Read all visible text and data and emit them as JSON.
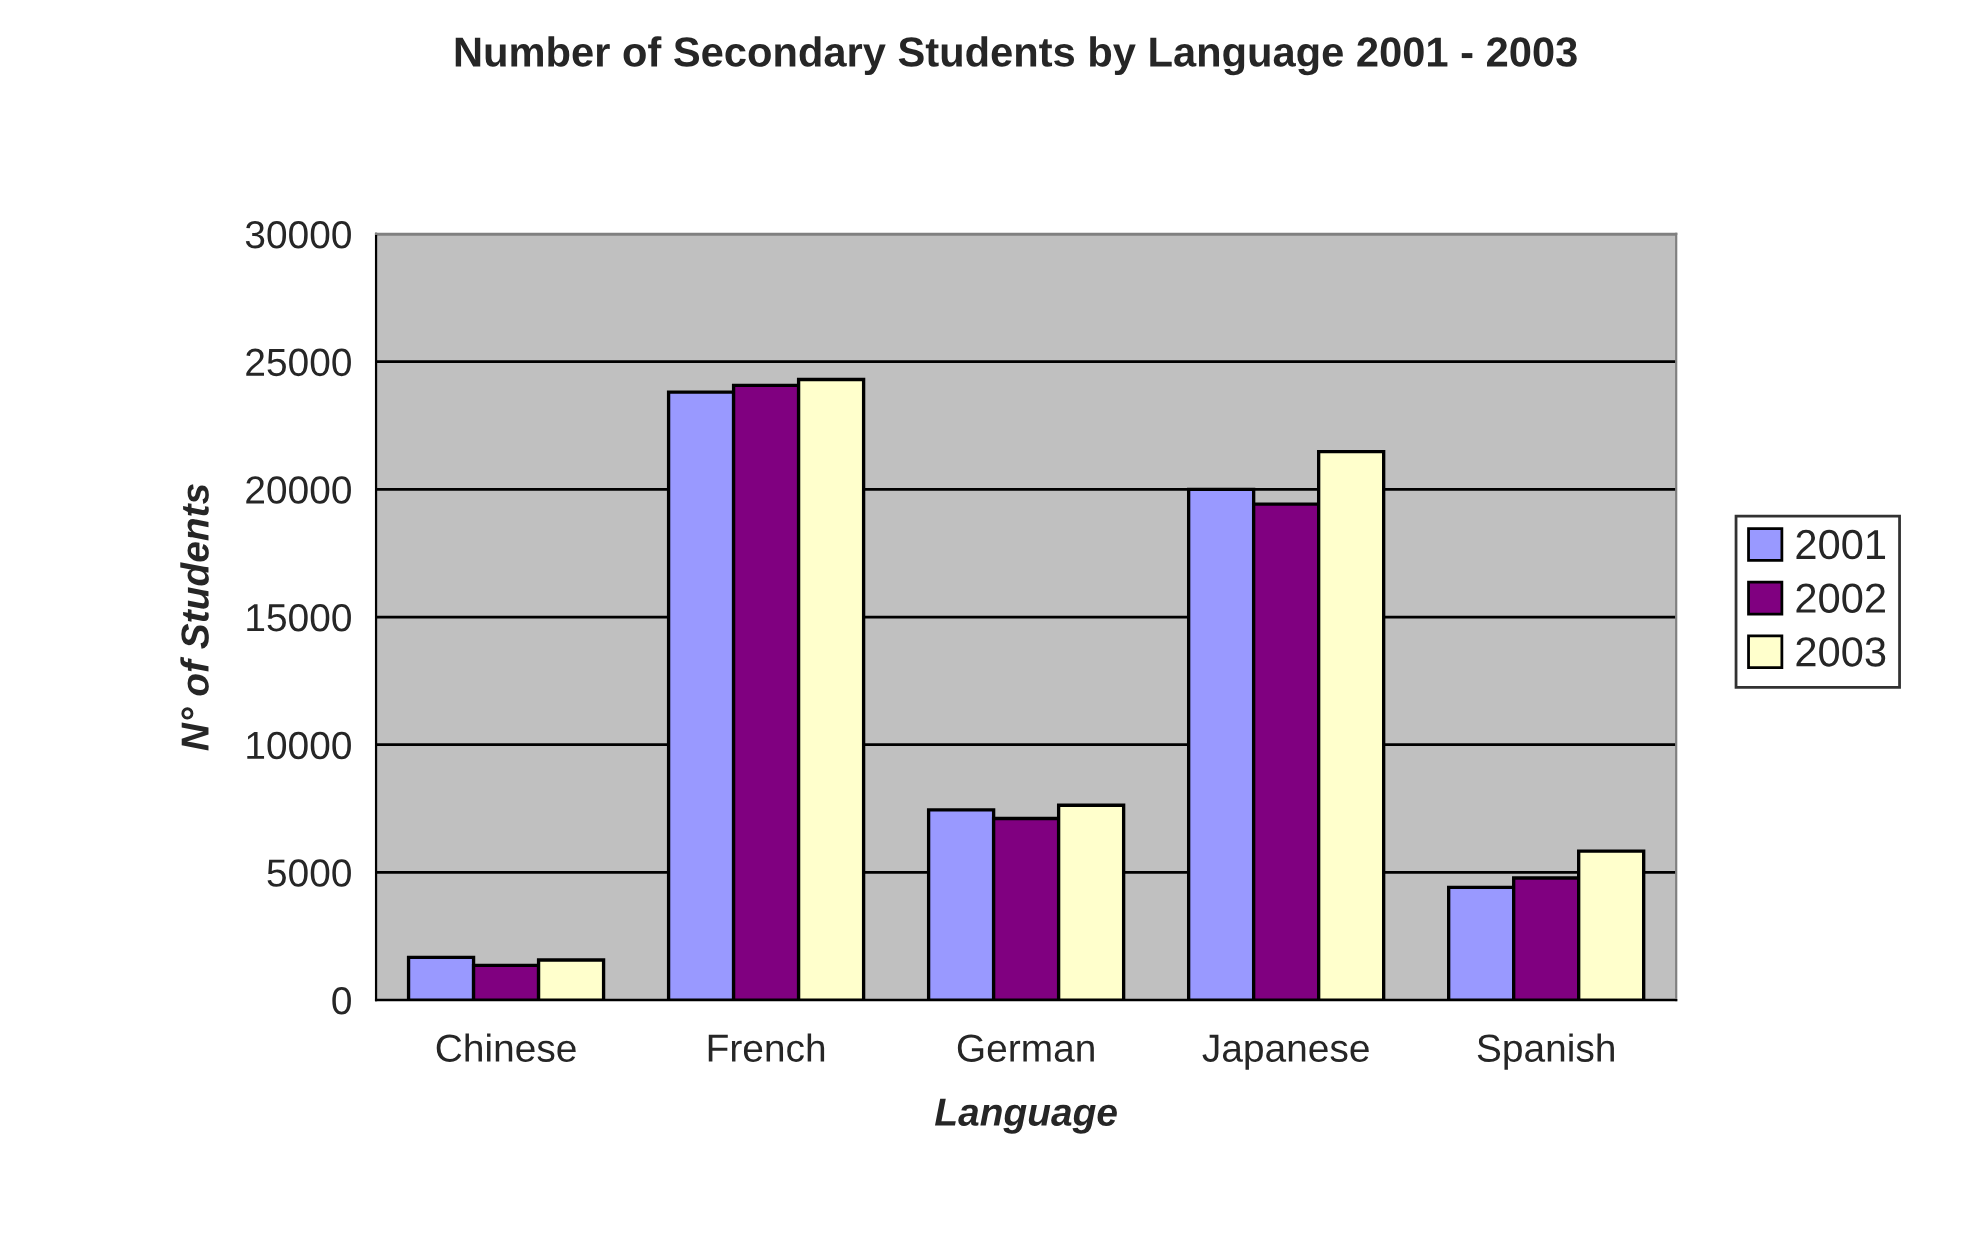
{
  "chart_data": {
    "type": "bar",
    "title": "Number of Secondary Students by Language 2001 - 2003",
    "xlabel": "Language",
    "ylabel": "N° of Students",
    "categories": [
      "Chinese",
      "French",
      "German",
      "Japanese",
      "Spanish"
    ],
    "series": [
      {
        "name": "2001",
        "color": "#9999ff",
        "values": [
          1670,
          23810,
          7450,
          20000,
          4410
        ]
      },
      {
        "name": "2002",
        "color": "#800080",
        "values": [
          1360,
          24070,
          7110,
          19420,
          4780
        ]
      },
      {
        "name": "2003",
        "color": "#ffffcc",
        "values": [
          1570,
          24300,
          7630,
          21480,
          5830
        ]
      }
    ],
    "ylim": [
      0,
      30000
    ],
    "yticks": [
      0,
      5000,
      10000,
      15000,
      20000,
      25000,
      30000
    ],
    "grid": "y",
    "legend": "right"
  }
}
